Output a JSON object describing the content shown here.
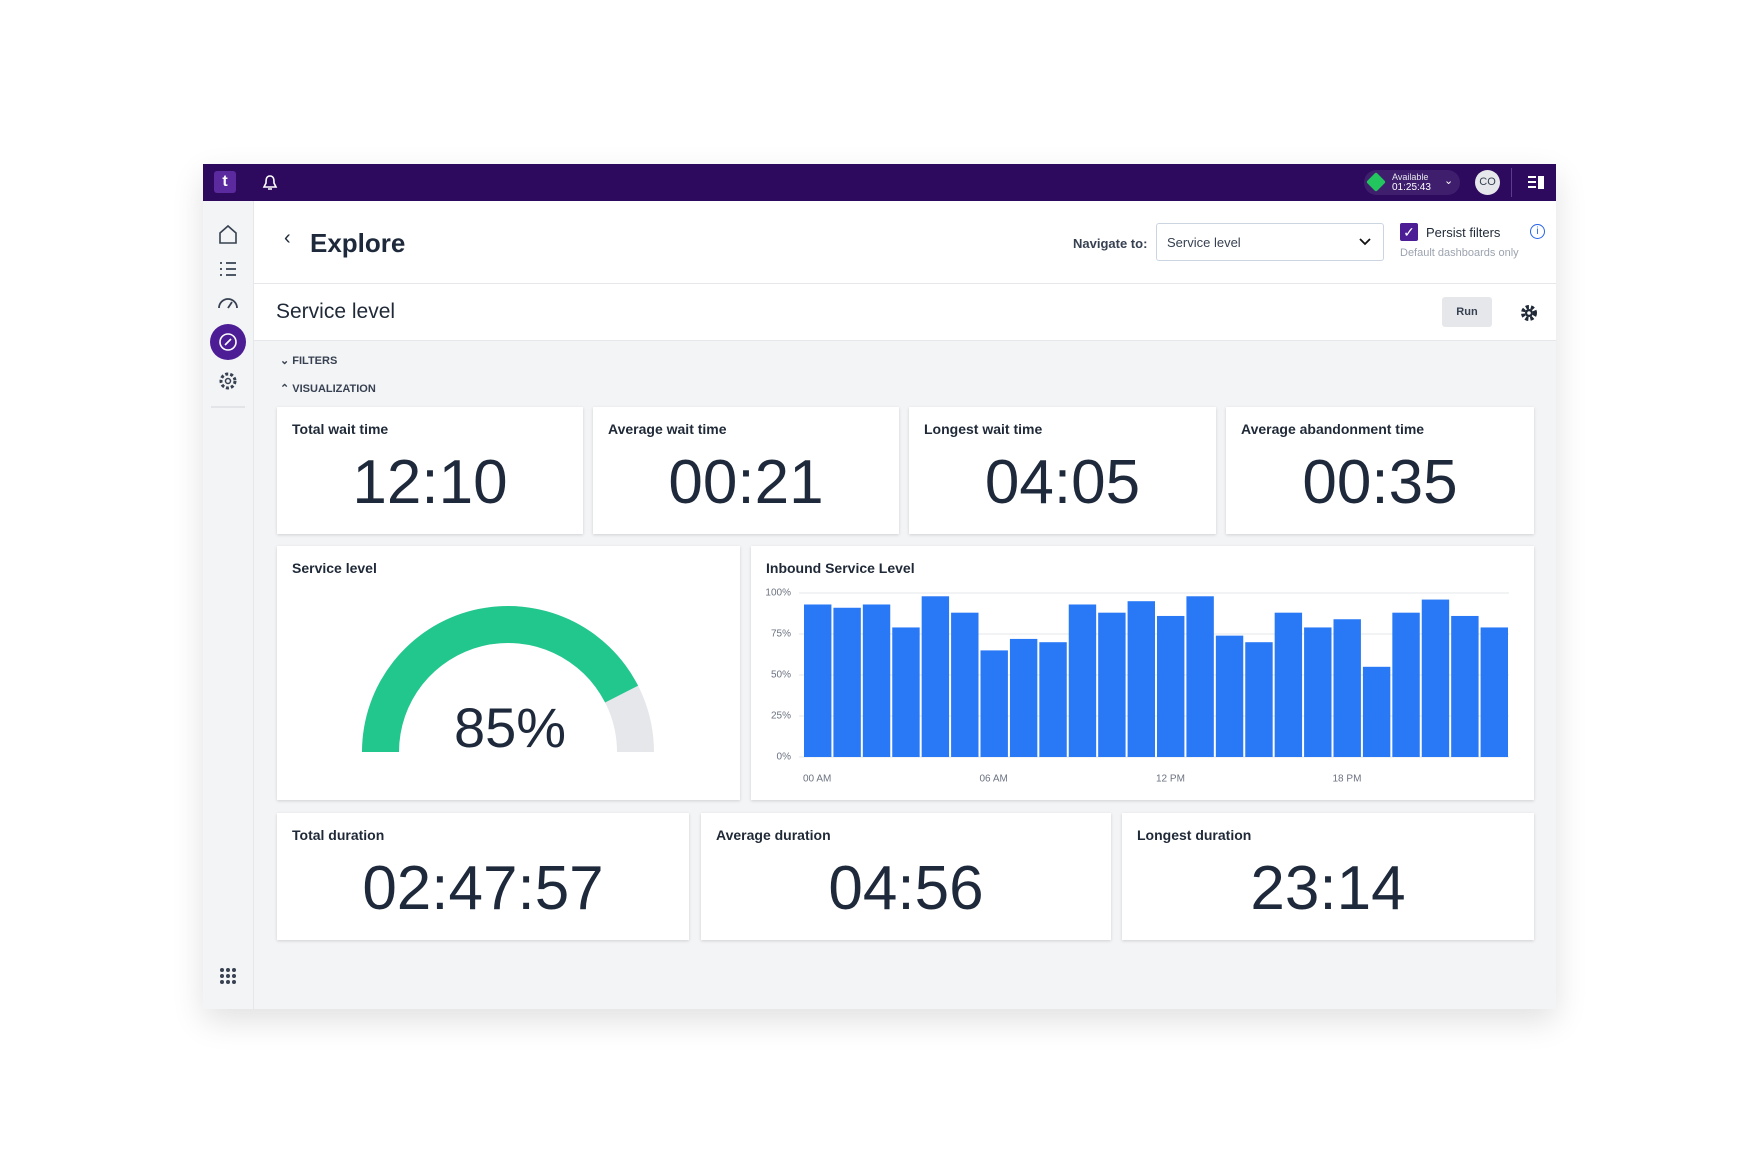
{
  "topbar": {
    "status": "Available",
    "timer": "01:25:43",
    "avatar": "CO"
  },
  "header": {
    "title": "Explore",
    "navigate_label": "Navigate to:",
    "navigate_value": "Service level",
    "persist_label": "Persist filters",
    "persist_note": "Default dashboards only"
  },
  "toolbar": {
    "title": "Service level",
    "run": "Run"
  },
  "sections": {
    "filters": "FILTERS",
    "visualization": "VISUALIZATION"
  },
  "kpis": [
    {
      "label": "Total wait time",
      "value": "12:10"
    },
    {
      "label": "Average wait time",
      "value": "00:21"
    },
    {
      "label": "Longest wait time",
      "value": "04:05"
    },
    {
      "label": "Average abandonment time",
      "value": "00:35"
    },
    {
      "label": "Total duration",
      "value": "02:47:57"
    },
    {
      "label": "Average duration",
      "value": "04:56"
    },
    {
      "label": "Longest duration",
      "value": "23:14"
    }
  ],
  "chart_data": [
    {
      "type": "gauge",
      "title": "Service level",
      "values": [
        85
      ],
      "value_labels": [
        "85%"
      ],
      "ylim": [
        0,
        100
      ],
      "color": "#22c78e",
      "track_color": "#e5e7eb"
    },
    {
      "type": "bar",
      "title": "Inbound Service Level",
      "categories": [
        "00 AM",
        null,
        null,
        null,
        null,
        null,
        "06 AM",
        null,
        null,
        null,
        null,
        null,
        "12 PM",
        null,
        null,
        null,
        null,
        null,
        "18 PM",
        null,
        null,
        null,
        null,
        null
      ],
      "values": [
        93,
        91,
        93,
        79,
        98,
        88,
        65,
        72,
        70,
        93,
        88,
        95,
        86,
        98,
        74,
        70,
        88,
        79,
        84,
        55,
        88,
        96,
        86,
        79
      ],
      "color": "#2979f6",
      "ylim": [
        0,
        100
      ],
      "yticks": [
        {
          "value": 0,
          "label": "0%"
        },
        {
          "value": 25,
          "label": "25%"
        },
        {
          "value": 50,
          "label": "50%"
        },
        {
          "value": 75,
          "label": "75%"
        },
        {
          "value": 100,
          "label": "100%"
        }
      ],
      "grid": true
    }
  ]
}
